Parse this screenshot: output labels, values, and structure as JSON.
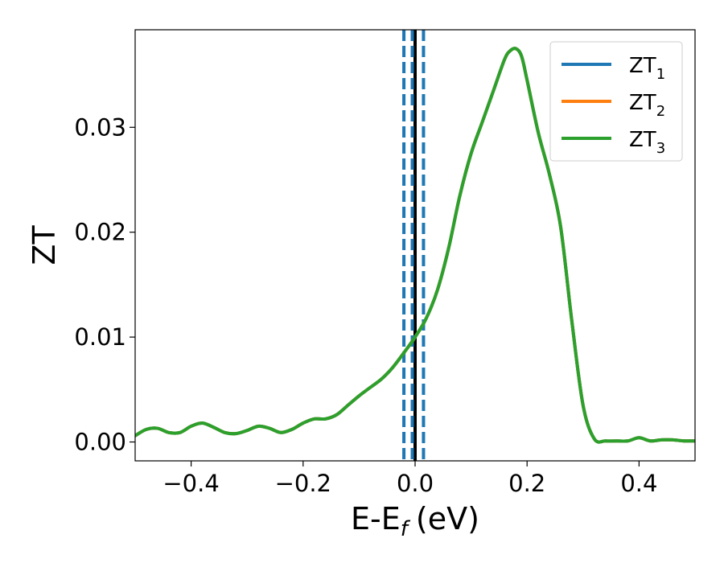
{
  "chart_data": {
    "type": "line",
    "title": "",
    "xlabel": "E-E",
    "xlabel_sub": "f",
    "xlabel_unit": "(eV)",
    "ylabel": "ZT",
    "xlim": [
      -0.5,
      0.5
    ],
    "ylim": [
      -0.0018,
      0.0393
    ],
    "xticks": [
      -0.4,
      -0.2,
      0.0,
      0.2,
      0.4
    ],
    "xtick_labels": [
      "−0.4",
      "−0.2",
      "0.0",
      "0.2",
      "0.4"
    ],
    "yticks": [
      0.0,
      0.01,
      0.02,
      0.03
    ],
    "ytick_labels": [
      "0.00",
      "0.01",
      "0.02",
      "0.03"
    ],
    "grid": false,
    "legend_position": "top-right",
    "x": [
      -0.5,
      -0.48,
      -0.46,
      -0.44,
      -0.42,
      -0.4,
      -0.38,
      -0.36,
      -0.34,
      -0.32,
      -0.3,
      -0.28,
      -0.26,
      -0.24,
      -0.22,
      -0.2,
      -0.18,
      -0.16,
      -0.14,
      -0.12,
      -0.1,
      -0.08,
      -0.06,
      -0.04,
      -0.02,
      0.0,
      0.02,
      0.04,
      0.06,
      0.08,
      0.1,
      0.12,
      0.14,
      0.16,
      0.17,
      0.18,
      0.19,
      0.2,
      0.22,
      0.24,
      0.26,
      0.28,
      0.3,
      0.32,
      0.34,
      0.36,
      0.38,
      0.4,
      0.42,
      0.44,
      0.46,
      0.48,
      0.5
    ],
    "series": [
      {
        "name": "ZT",
        "name_sub": "1",
        "color": "#1f77b4",
        "values": [
          0.0006,
          0.0012,
          0.0013,
          0.0009,
          0.0009,
          0.0015,
          0.0018,
          0.0014,
          0.0009,
          0.0008,
          0.0011,
          0.0015,
          0.0013,
          0.0009,
          0.0012,
          0.0018,
          0.0022,
          0.0022,
          0.0026,
          0.0035,
          0.0044,
          0.0052,
          0.006,
          0.0071,
          0.0085,
          0.01,
          0.0118,
          0.0145,
          0.0185,
          0.0235,
          0.0275,
          0.0305,
          0.0335,
          0.0365,
          0.0373,
          0.0375,
          0.0368,
          0.0345,
          0.0295,
          0.0255,
          0.0205,
          0.0115,
          0.0035,
          0.0003,
          0.0001,
          0.0001,
          0.0001,
          0.0004,
          0.0001,
          0.0002,
          0.0002,
          0.0001,
          0.0001
        ]
      },
      {
        "name": "ZT",
        "name_sub": "2",
        "color": "#ff7f0e",
        "values": [
          0.0006,
          0.0012,
          0.0013,
          0.0009,
          0.0009,
          0.0015,
          0.0018,
          0.0014,
          0.0009,
          0.0008,
          0.0011,
          0.0015,
          0.0013,
          0.0009,
          0.0012,
          0.0018,
          0.0022,
          0.0022,
          0.0026,
          0.0035,
          0.0044,
          0.0052,
          0.006,
          0.0071,
          0.0085,
          0.01,
          0.0118,
          0.0145,
          0.0185,
          0.0235,
          0.0275,
          0.0305,
          0.0335,
          0.0365,
          0.0373,
          0.0375,
          0.0368,
          0.0345,
          0.0295,
          0.0255,
          0.0205,
          0.0115,
          0.0035,
          0.0003,
          0.0001,
          0.0001,
          0.0001,
          0.0004,
          0.0001,
          0.0002,
          0.0002,
          0.0001,
          0.0001
        ]
      },
      {
        "name": "ZT",
        "name_sub": "3",
        "color": "#2ca02c",
        "values": [
          0.0006,
          0.0012,
          0.0013,
          0.0009,
          0.0009,
          0.0015,
          0.0018,
          0.0014,
          0.0009,
          0.0008,
          0.0011,
          0.0015,
          0.0013,
          0.0009,
          0.0012,
          0.0018,
          0.0022,
          0.0022,
          0.0026,
          0.0035,
          0.0044,
          0.0052,
          0.006,
          0.0071,
          0.0085,
          0.01,
          0.0118,
          0.0145,
          0.0185,
          0.0235,
          0.0275,
          0.0305,
          0.0335,
          0.0365,
          0.0373,
          0.0375,
          0.0368,
          0.0345,
          0.0295,
          0.0255,
          0.0205,
          0.0115,
          0.0035,
          0.0003,
          0.0001,
          0.0001,
          0.0001,
          0.0004,
          0.0001,
          0.0002,
          0.0002,
          0.0001,
          0.0001
        ]
      }
    ],
    "vlines": [
      {
        "x": 0.0,
        "style": "solid",
        "color": "#000000"
      },
      {
        "x": -0.02,
        "style": "dashed",
        "color": "#1f77b4"
      },
      {
        "x": -0.005,
        "style": "dashed",
        "color": "#1f77b4"
      },
      {
        "x": 0.015,
        "style": "dashed",
        "color": "#1f77b4"
      }
    ]
  }
}
